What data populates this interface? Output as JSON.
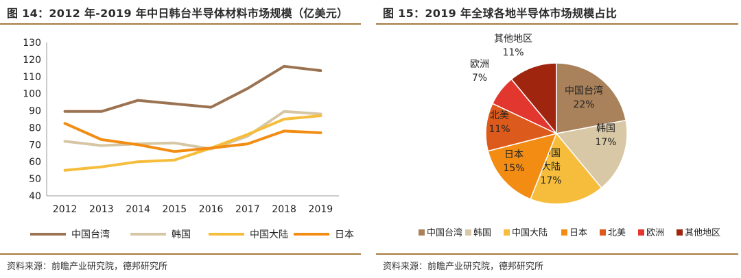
{
  "left": {
    "title": "图 14：2012 年-2019 年中日韩台半导体材料市场规模（亿美元）",
    "source": "资料来源：前瞻产业研究院，德邦研究所"
  },
  "right": {
    "title": "图 15：2019 年全球各地半导体市场规模占比",
    "source": "资料来源：前瞻产业研究院，德邦研究所"
  },
  "chart_data": [
    {
      "type": "line",
      "title": "2012 年-2019 年中日韩台半导体材料市场规模（亿美元）",
      "xlabel": "",
      "ylabel": "",
      "categories": [
        "2012",
        "2013",
        "2014",
        "2015",
        "2016",
        "2017",
        "2018",
        "2019"
      ],
      "ylim": [
        40,
        130
      ],
      "yticks": [
        40,
        50,
        60,
        70,
        80,
        90,
        100,
        110,
        120,
        130
      ],
      "grid": false,
      "legend_position": "bottom",
      "series": [
        {
          "name": "中国台湾",
          "color": "#9b7352",
          "values": [
            89.5,
            89.5,
            96,
            94,
            92,
            103,
            116,
            113.5
          ]
        },
        {
          "name": "韩国",
          "color": "#d6c6a4",
          "values": [
            72,
            69.5,
            70.5,
            71,
            67.5,
            75,
            89.5,
            88
          ]
        },
        {
          "name": "中国大陆",
          "color": "#f5bd3b",
          "values": [
            55,
            57,
            60,
            61,
            68,
            76,
            85,
            87
          ]
        },
        {
          "name": "日本",
          "color": "#f28c13",
          "values": [
            82.5,
            73,
            70,
            66,
            68,
            70.5,
            78,
            77
          ]
        }
      ]
    },
    {
      "type": "pie",
      "title": "2019 年全球各地半导体市场规模占比",
      "legend_position": "bottom",
      "slices": [
        {
          "name": "中国台湾",
          "value": 22,
          "label": "22%",
          "color": "#a9815b"
        },
        {
          "name": "韩国",
          "value": 17,
          "label": "17%",
          "color": "#d8c8a5"
        },
        {
          "name": "中国大陆",
          "value": 17,
          "label": "17%",
          "color": "#f5bd3b"
        },
        {
          "name": "日本",
          "value": 15,
          "label": "15%",
          "color": "#f28c13"
        },
        {
          "name": "北美",
          "value": 11,
          "label": "11%",
          "color": "#dc5a1c"
        },
        {
          "name": "欧洲",
          "value": 7,
          "label": "7%",
          "color": "#e2372f"
        },
        {
          "name": "其他地区",
          "value": 11,
          "label": "11%",
          "color": "#a0250f"
        }
      ]
    }
  ]
}
